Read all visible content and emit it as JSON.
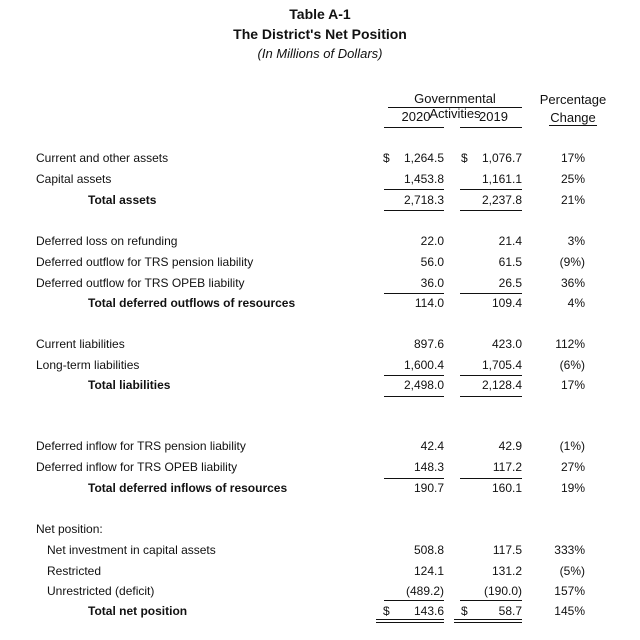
{
  "header": {
    "table_id": "Table A-1",
    "title": "The District's Net Position",
    "units": "(In Millions of Dollars)",
    "gov_activities": "Governmental Activities",
    "year_2020": "2020",
    "year_2019": "2019",
    "pct_line1": "Percentage",
    "pct_line2": "Change"
  },
  "assets": {
    "current_label": "Current and other assets",
    "current_dollar_2020": "$",
    "current_2020": "1,264.5",
    "current_dollar_2019": "$",
    "current_2019": "1,076.7",
    "current_pct": "17%",
    "capital_label": "Capital assets",
    "capital_2020": "1,453.8",
    "capital_2019": "1,161.1",
    "capital_pct": "25%",
    "total_label": "Total assets",
    "total_2020": "2,718.3",
    "total_2019": "2,237.8",
    "total_pct": "21%"
  },
  "deferred_outflows": {
    "refunding_label": "Deferred loss on refunding",
    "refunding_2020": "22.0",
    "refunding_2019": "21.4",
    "refunding_pct": "3%",
    "pension_label": "Deferred outflow for TRS pension liability",
    "pension_2020": "56.0",
    "pension_2019": "61.5",
    "pension_pct": "(9%)",
    "opeb_label": "Deferred outflow for TRS OPEB liability",
    "opeb_2020": "36.0",
    "opeb_2019": "26.5",
    "opeb_pct": "36%",
    "total_label": "Total deferred outflows of resources",
    "total_2020": "114.0",
    "total_2019": "109.4",
    "total_pct": "4%"
  },
  "liabilities": {
    "current_label": "Current liabilities",
    "current_2020": "897.6",
    "current_2019": "423.0",
    "current_pct": "112%",
    "longterm_label": "Long-term liabilities",
    "longterm_2020": "1,600.4",
    "longterm_2019": "1,705.4",
    "longterm_pct": "(6%)",
    "total_label": "Total liabilities",
    "total_2020": "2,498.0",
    "total_2019": "2,128.4",
    "total_pct": "17%"
  },
  "deferred_inflows": {
    "pension_label": "Deferred inflow for TRS pension liability",
    "pension_2020": "42.4",
    "pension_2019": "42.9",
    "pension_pct": "(1%)",
    "opeb_label": "Deferred inflow for TRS OPEB liability",
    "opeb_2020": "148.3",
    "opeb_2019": "117.2",
    "opeb_pct": "27%",
    "total_label": "Total deferred inflows of resources",
    "total_2020": "190.7",
    "total_2019": "160.1",
    "total_pct": "19%"
  },
  "net_position": {
    "heading": "Net position:",
    "investment_label": "Net investment in capital assets",
    "investment_2020": "508.8",
    "investment_2019": "117.5",
    "investment_pct": "333%",
    "restricted_label": "Restricted",
    "restricted_2020": "124.1",
    "restricted_2019": "131.2",
    "restricted_pct": "(5%)",
    "unrestricted_label": "Unrestricted (deficit)",
    "unrestricted_2020": "(489.2)",
    "unrestricted_2019": "(190.0)",
    "unrestricted_pct": "157%",
    "total_label": "Total net position",
    "total_dollar_2020": "$",
    "total_2020": "143.6",
    "total_dollar_2019": "$",
    "total_2019": "58.7",
    "total_pct": "145%"
  }
}
